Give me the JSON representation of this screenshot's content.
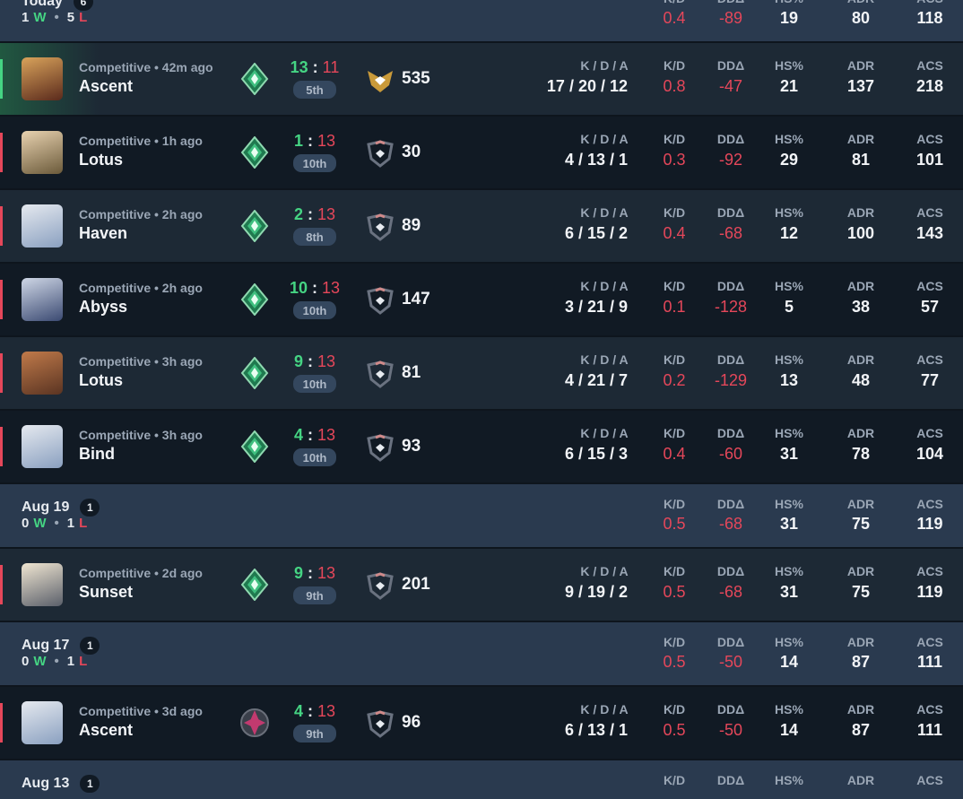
{
  "labels": {
    "kda": "K / D / A",
    "kd": "K/D",
    "dd": "DDΔ",
    "hs": "HS%",
    "adr": "ADR",
    "acs": "ACS",
    "win": "W",
    "loss": "L",
    "sep": "•",
    "colon": ":"
  },
  "groups": [
    {
      "date": "Today",
      "count": 6,
      "wins": 1,
      "losses": 5,
      "stats": {
        "kd": 0.4,
        "dd": -89,
        "hs": 19,
        "adr": 80,
        "acs": 118
      },
      "matches": [
        {
          "mode": "Competitive • 42m ago",
          "map": "Ascent",
          "score": [
            13,
            11
          ],
          "place": "5th",
          "rr": 535,
          "kda": "17 / 20 / 12",
          "kd": 0.8,
          "dd": -47,
          "hs": 21,
          "adr": 137,
          "acs": 218
        },
        {
          "mode": "Competitive • 1h ago",
          "map": "Lotus",
          "score": [
            1,
            13
          ],
          "place": "10th",
          "rr": 30,
          "kda": "4 / 13 / 1",
          "kd": 0.3,
          "dd": -92,
          "hs": 29,
          "adr": 81,
          "acs": 101
        },
        {
          "mode": "Competitive • 2h ago",
          "map": "Haven",
          "score": [
            2,
            13
          ],
          "place": "8th",
          "rr": 89,
          "kda": "6 / 15 / 2",
          "kd": 0.4,
          "dd": -68,
          "hs": 12,
          "adr": 100,
          "acs": 143
        },
        {
          "mode": "Competitive • 2h ago",
          "map": "Abyss",
          "score": [
            10,
            13
          ],
          "place": "10th",
          "rr": 147,
          "kda": "3 / 21 / 9",
          "kd": 0.1,
          "dd": -128,
          "hs": 5,
          "adr": 38,
          "acs": 57
        },
        {
          "mode": "Competitive • 3h ago",
          "map": "Lotus",
          "score": [
            9,
            13
          ],
          "place": "10th",
          "rr": 81,
          "kda": "4 / 21 / 7",
          "kd": 0.2,
          "dd": -129,
          "hs": 13,
          "adr": 48,
          "acs": 77
        },
        {
          "mode": "Competitive • 3h ago",
          "map": "Bind",
          "score": [
            4,
            13
          ],
          "place": "10th",
          "rr": 93,
          "kda": "6 / 15 / 3",
          "kd": 0.4,
          "dd": -60,
          "hs": 31,
          "adr": 78,
          "acs": 104
        }
      ]
    },
    {
      "date": "Aug 19",
      "count": 1,
      "wins": 0,
      "losses": 1,
      "stats": {
        "kd": 0.5,
        "dd": -68,
        "hs": 31,
        "adr": 75,
        "acs": 119
      },
      "matches": [
        {
          "mode": "Competitive • 2d ago",
          "map": "Sunset",
          "score": [
            9,
            13
          ],
          "place": "9th",
          "rr": 201,
          "kda": "9 / 19 / 2",
          "kd": 0.5,
          "dd": -68,
          "hs": 31,
          "adr": 75,
          "acs": 119
        }
      ]
    },
    {
      "date": "Aug 17",
      "count": 1,
      "wins": 0,
      "losses": 1,
      "stats": {
        "kd": 0.5,
        "dd": -50,
        "hs": 14,
        "adr": 87,
        "acs": 111
      },
      "matches": [
        {
          "mode": "Competitive • 3d ago",
          "map": "Ascent",
          "score": [
            4,
            13
          ],
          "place": "9th",
          "rr": 96,
          "kda": "6 / 13 / 1",
          "kd": 0.5,
          "dd": -50,
          "hs": 14,
          "adr": 87,
          "acs": 111
        }
      ]
    },
    {
      "date": "Aug 13",
      "count": 1
    }
  ]
}
